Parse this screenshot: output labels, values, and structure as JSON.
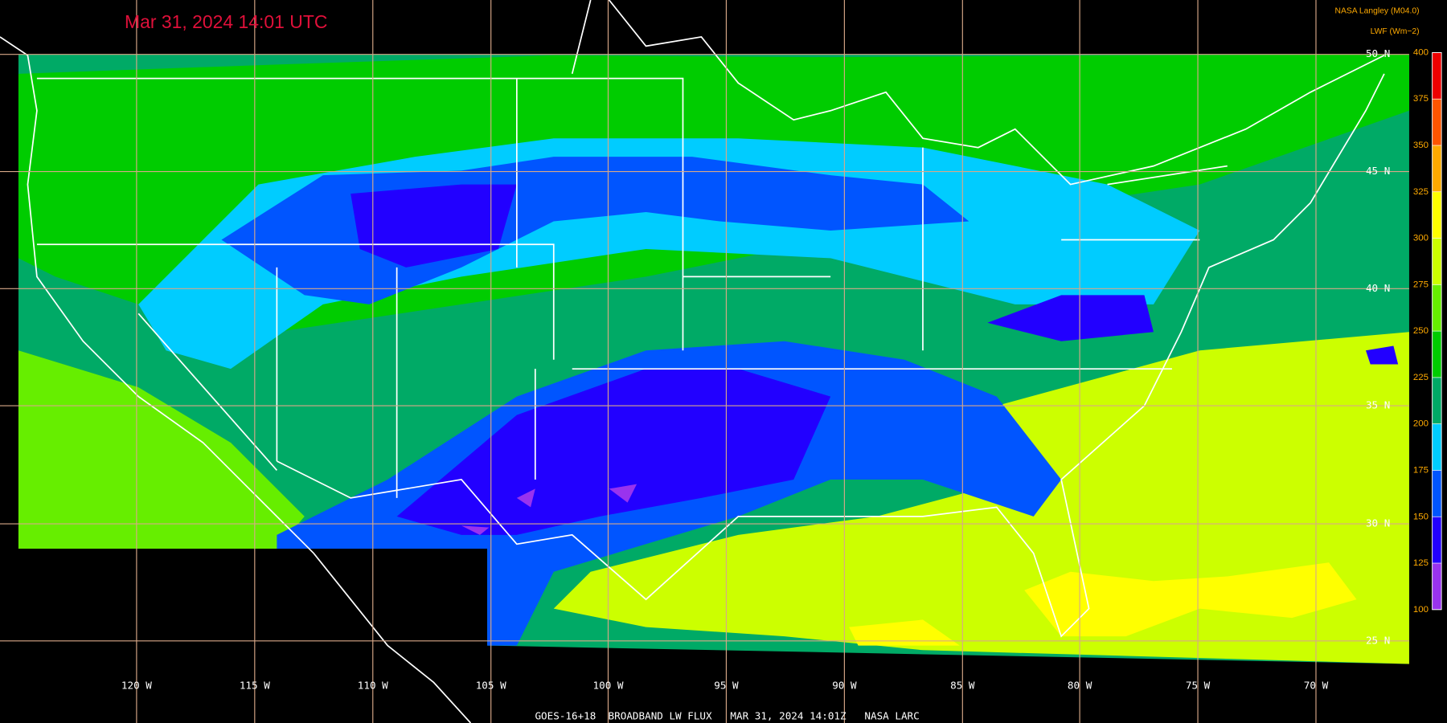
{
  "header": {
    "title": "Mar 31, 2024 14:01 UTC",
    "credit": "NASA Langley (M04.0)"
  },
  "colorbar": {
    "label": "LWF (Wm−2)",
    "ylim": [
      100,
      400
    ],
    "ticks": [
      100,
      125,
      150,
      175,
      200,
      225,
      250,
      275,
      300,
      325,
      350,
      375,
      400
    ],
    "colors": [
      "#9933ee",
      "#2200ff",
      "#0055ff",
      "#00ccff",
      "#00aa66",
      "#00cc00",
      "#66ee00",
      "#ccff00",
      "#ffff00",
      "#ffaa00",
      "#ff5500",
      "#ee0000"
    ]
  },
  "map": {
    "latitude_labels": [
      "50 N",
      "45 N",
      "40 N",
      "35 N",
      "30 N",
      "25 N"
    ],
    "longitude_labels": [
      "120 W",
      "115 W",
      "110 W",
      "105 W",
      "100 W",
      "95 W",
      "90 W",
      "85 W",
      "80 W",
      "75 W",
      "70 W"
    ]
  },
  "footer": "GOES-16+18  BROADBAND LW FLUX   MAR 31, 2024 14:01Z   NASA LARC"
}
